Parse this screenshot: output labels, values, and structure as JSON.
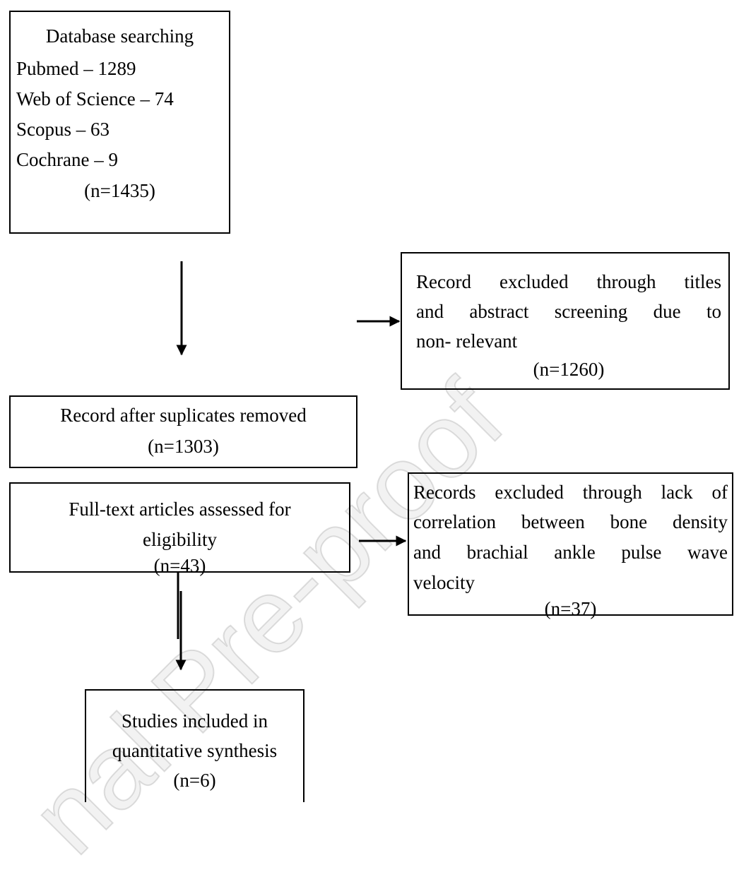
{
  "boxes": [
    {
      "lines": [
        "Database searching",
        "Pubmed – 1289",
        "Web of Science – 74",
        "Scopus – 63",
        "Cochrane – 9",
        "(n=1435)"
      ]
    },
    {
      "lines": [
        "Record excluded through titles",
        "and abstract screening due to",
        "non- relevant",
        "(n=1260)"
      ]
    },
    {
      "lines": [
        "Record after suplicates removed",
        "(n=1303)"
      ]
    },
    {
      "lines": [
        "Full-text articles assessed for",
        "eligibility",
        "(n=43)"
      ]
    },
    {
      "lines": [
        "Records excluded through lack of",
        "correlation between bone density",
        "and brachial ankle pulse wave",
        "velocity",
        "(n=37)"
      ]
    },
    {
      "lines": [
        "Studies included in",
        "quantitative synthesis",
        "(n=6)"
      ]
    }
  ],
  "watermark": "nal Pre-proof"
}
